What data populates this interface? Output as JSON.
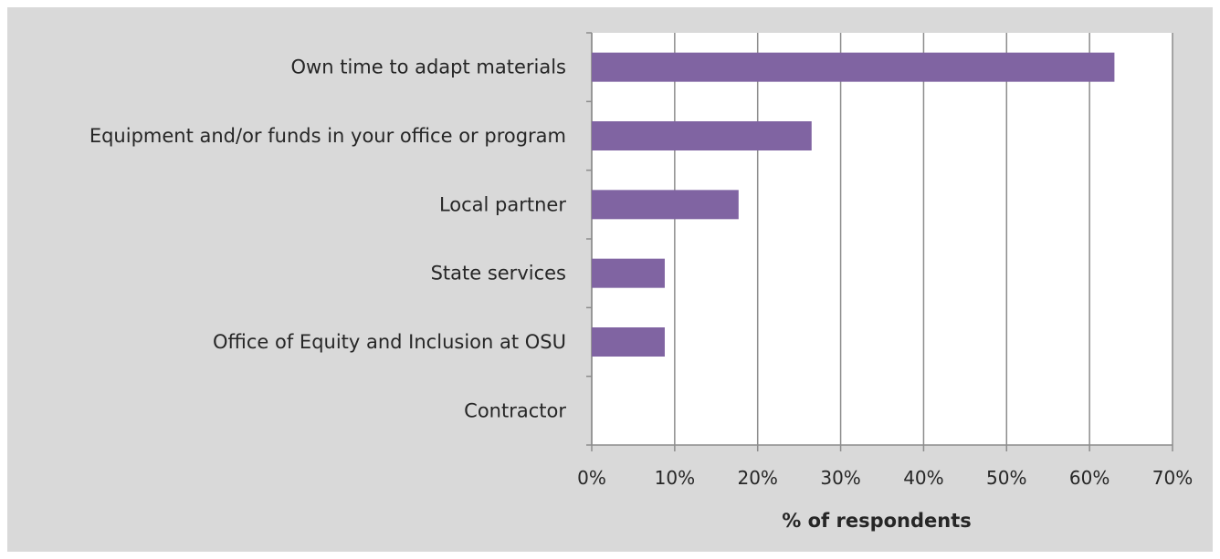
{
  "chart_data": {
    "type": "bar",
    "orientation": "horizontal",
    "categories": [
      "Own time to adapt materials",
      "Equipment and/or funds in your office or program",
      "Local partner",
      "State services",
      "Office of Equity and Inclusion at OSU",
      "Contractor"
    ],
    "values": [
      63,
      26.5,
      17.7,
      8.8,
      8.8,
      0
    ],
    "xlabel": "% of respondents",
    "ylabel": "",
    "xlim": [
      0,
      70
    ],
    "ticks": [
      "0%",
      "10%",
      "20%",
      "30%",
      "40%",
      "50%",
      "60%",
      "70%"
    ],
    "grid": "vertical",
    "legend": "none",
    "colors": {
      "bar": "#8064a2",
      "plot_background": "#ffffff",
      "chart_background": "#d9d9d9",
      "gridline": "#8c8c8c"
    }
  }
}
